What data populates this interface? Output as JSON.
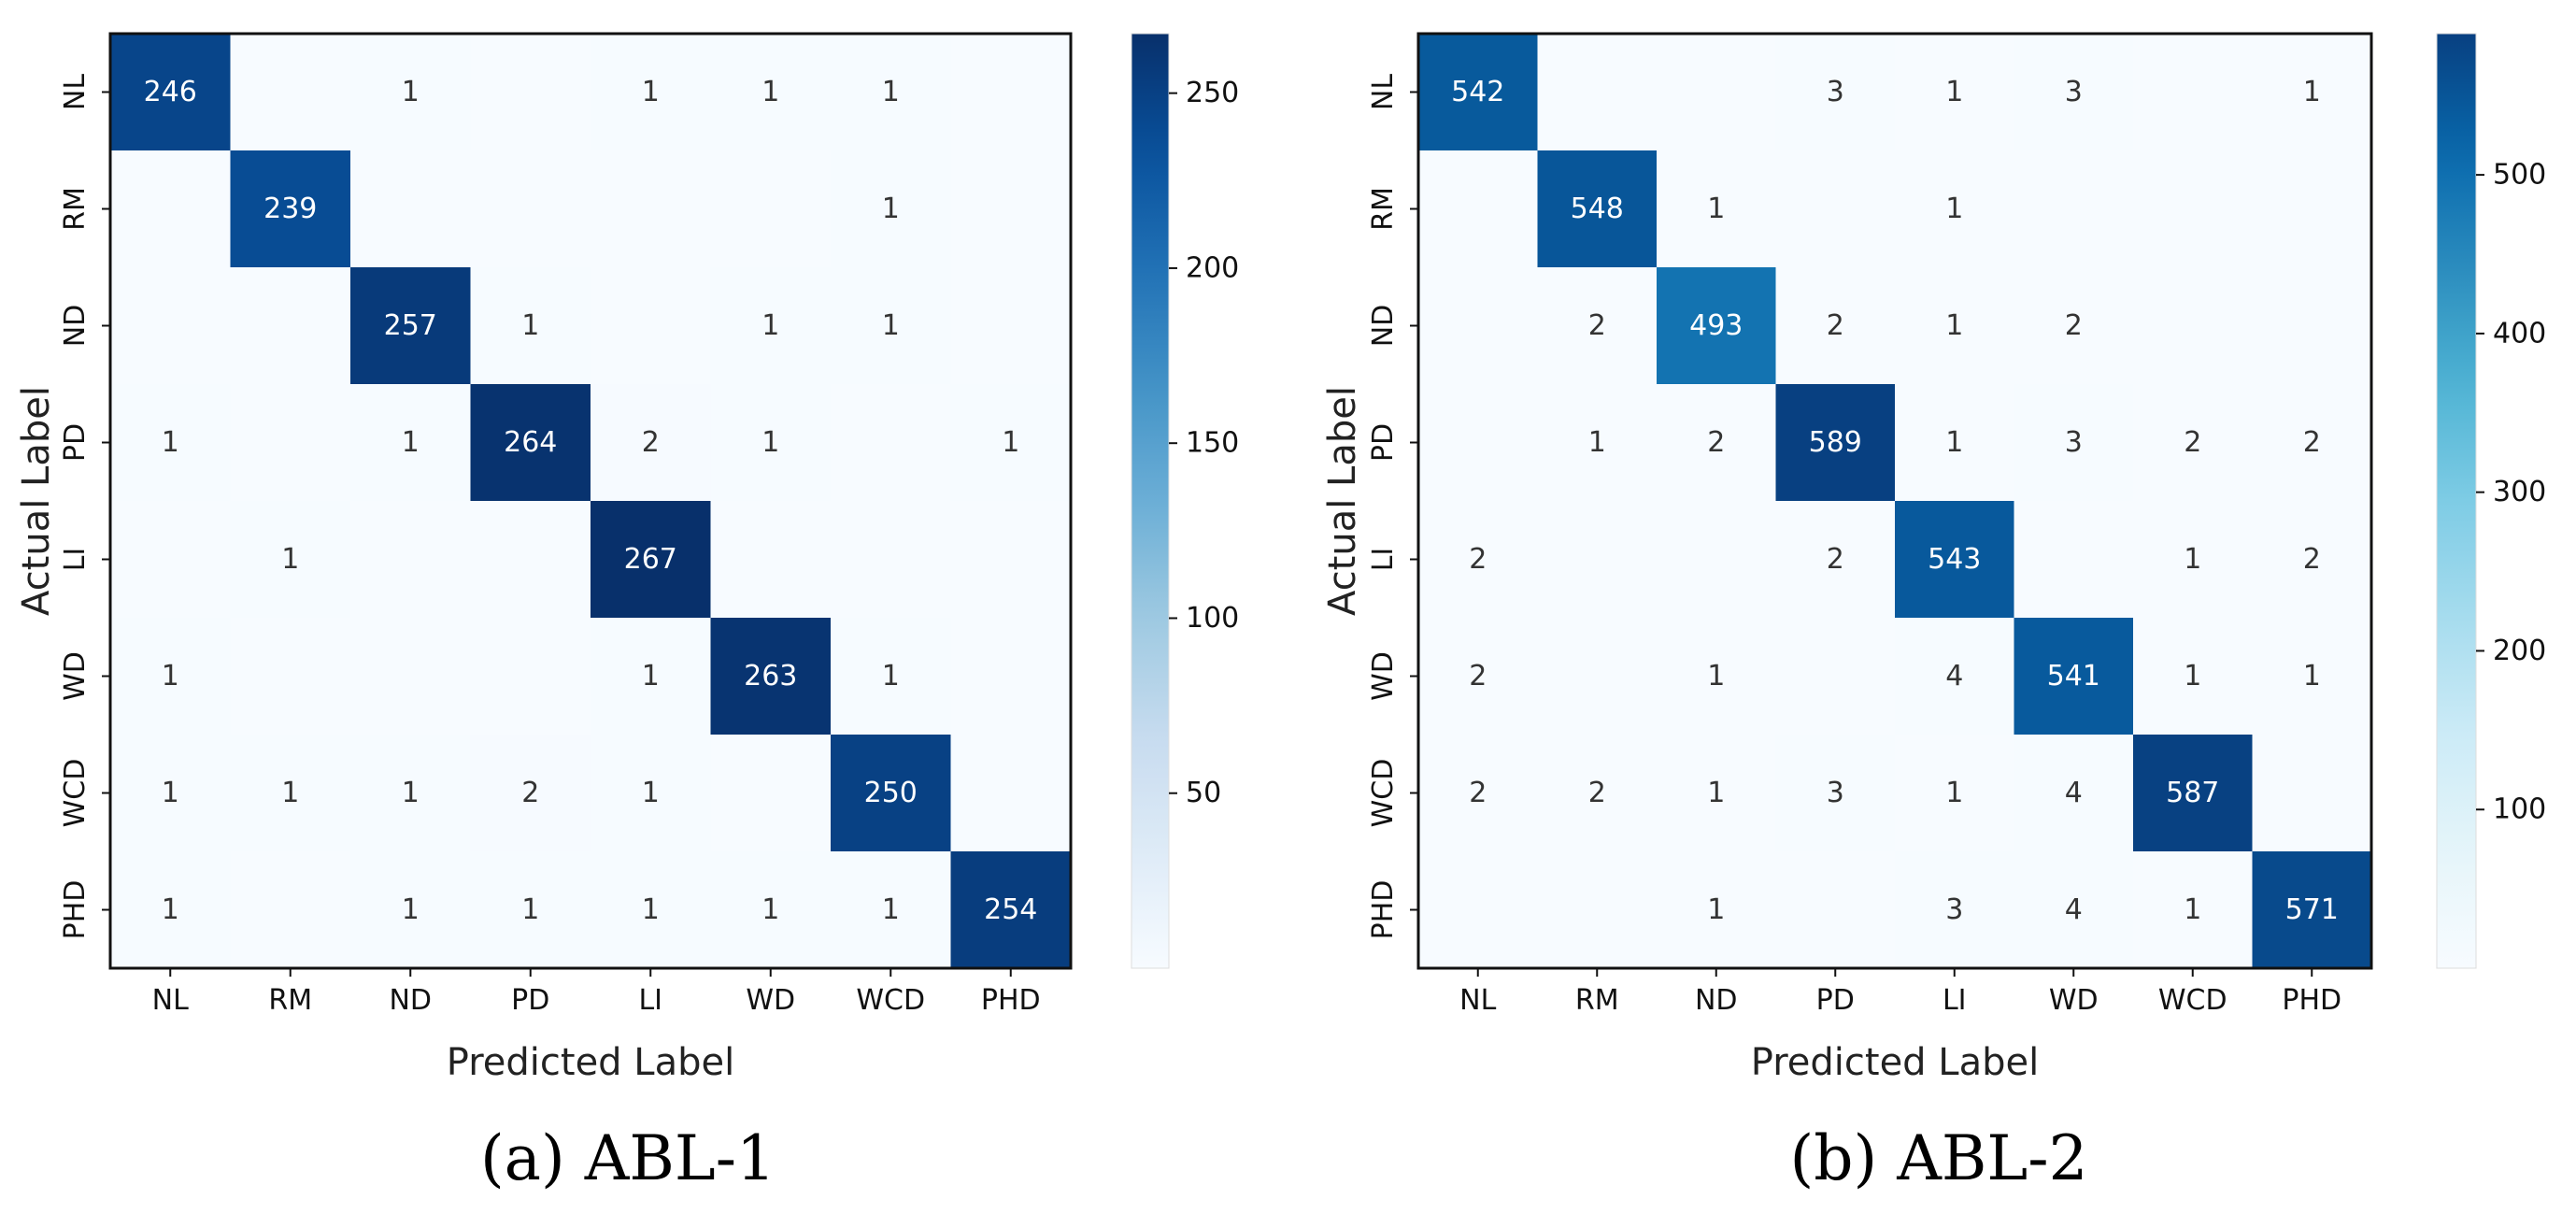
{
  "figure": {
    "panels": [
      {
        "caption": "(a) ABL-1"
      },
      {
        "caption": "(b) ABL-2"
      }
    ]
  },
  "chart_data": [
    {
      "type": "heatmap",
      "title": "",
      "caption": "(a) ABL-1",
      "xlabel": "Predicted Label",
      "ylabel": "Actual Label",
      "x_categories": [
        "NL",
        "RM",
        "ND",
        "PD",
        "LI",
        "WD",
        "WCD",
        "PHD"
      ],
      "y_categories": [
        "NL",
        "RM",
        "ND",
        "PD",
        "LI",
        "WD",
        "WCD",
        "PHD"
      ],
      "values": [
        [
          246,
          0,
          1,
          0,
          1,
          1,
          1,
          0
        ],
        [
          0,
          239,
          0,
          0,
          0,
          0,
          1,
          0
        ],
        [
          0,
          0,
          257,
          1,
          0,
          1,
          1,
          0
        ],
        [
          1,
          0,
          1,
          264,
          2,
          1,
          0,
          1
        ],
        [
          0,
          1,
          0,
          0,
          267,
          0,
          0,
          0
        ],
        [
          1,
          0,
          0,
          0,
          1,
          263,
          1,
          0
        ],
        [
          1,
          1,
          1,
          2,
          1,
          0,
          250,
          0
        ],
        [
          1,
          0,
          1,
          1,
          1,
          1,
          1,
          254
        ]
      ],
      "colorbar": {
        "vmin": 0,
        "vmax": 267,
        "ticks": [
          50,
          100,
          150,
          200,
          250
        ]
      },
      "colormap": [
        "#f7fbff",
        "#deebf7",
        "#c6dbef",
        "#9ecae1",
        "#6baed6",
        "#4292c6",
        "#2171b5",
        "#08519c",
        "#08306b"
      ]
    },
    {
      "type": "heatmap",
      "title": "",
      "caption": "(b) ABL-2",
      "xlabel": "Predicted Label",
      "ylabel": "Actual Label",
      "x_categories": [
        "NL",
        "RM",
        "ND",
        "PD",
        "LI",
        "WD",
        "WCD",
        "PHD"
      ],
      "y_categories": [
        "NL",
        "RM",
        "ND",
        "PD",
        "LI",
        "WD",
        "WCD",
        "PHD"
      ],
      "values": [
        [
          542,
          0,
          0,
          3,
          1,
          3,
          0,
          1
        ],
        [
          0,
          548,
          1,
          0,
          1,
          0,
          0,
          0
        ],
        [
          0,
          2,
          493,
          2,
          1,
          2,
          0,
          0
        ],
        [
          0,
          1,
          2,
          589,
          1,
          3,
          2,
          2
        ],
        [
          2,
          0,
          0,
          2,
          543,
          0,
          1,
          2
        ],
        [
          2,
          0,
          1,
          0,
          4,
          541,
          1,
          1
        ],
        [
          2,
          2,
          1,
          3,
          1,
          4,
          587,
          0
        ],
        [
          0,
          0,
          1,
          0,
          3,
          4,
          1,
          571
        ]
      ],
      "colorbar": {
        "vmin": 0,
        "vmax": 589,
        "ticks": [
          100,
          200,
          300,
          400,
          500
        ]
      },
      "colormap": [
        "#f7fbff",
        "#e5f5f9",
        "#ccebf7",
        "#a6dcee",
        "#7ecce5",
        "#4eb3d3",
        "#2b8cbe",
        "#0868ac",
        "#084081"
      ]
    }
  ]
}
